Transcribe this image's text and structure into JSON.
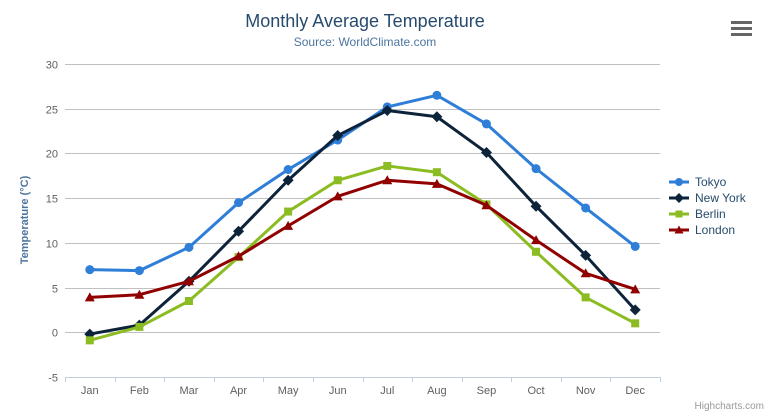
{
  "header": {
    "title": "Monthly Average Temperature",
    "subtitle": "Source: WorldClimate.com"
  },
  "icons": {
    "export_menu": "hamburger-menu-icon"
  },
  "credit": "Highcharts.com",
  "colors": {
    "title": "#274b6d",
    "subtitle": "#4d759e",
    "axis_title": "#4d759e",
    "axis_tick_label": "#606060",
    "gridline": "#c0c0c0",
    "axis_line": "#c0d0e0",
    "legend_text": "#274b6d",
    "credit_text": "#999999",
    "menu_icon": "#666666"
  },
  "chart_data": {
    "type": "line",
    "title": "Monthly Average Temperature",
    "subtitle": "Source: WorldClimate.com",
    "xlabel": "",
    "ylabel": "Temperature (°C)",
    "categories": [
      "Jan",
      "Feb",
      "Mar",
      "Apr",
      "May",
      "Jun",
      "Jul",
      "Aug",
      "Sep",
      "Oct",
      "Nov",
      "Dec"
    ],
    "ylim": [
      -5,
      30
    ],
    "ytick_interval": 5,
    "yticks": [
      30,
      25,
      20,
      15,
      10,
      5,
      0,
      -5
    ],
    "grid": true,
    "legend_position": "right",
    "series": [
      {
        "name": "Tokyo",
        "color": "#2f7ed8",
        "marker": "circle",
        "values": [
          7.0,
          6.9,
          9.5,
          14.5,
          18.2,
          21.5,
          25.2,
          26.5,
          23.3,
          18.3,
          13.9,
          9.6
        ]
      },
      {
        "name": "New York",
        "color": "#0d233a",
        "marker": "diamond",
        "values": [
          -0.2,
          0.8,
          5.7,
          11.3,
          17.0,
          22.0,
          24.8,
          24.1,
          20.1,
          14.1,
          8.6,
          2.5
        ]
      },
      {
        "name": "Berlin",
        "color": "#8bbc21",
        "marker": "square",
        "values": [
          -0.9,
          0.6,
          3.5,
          8.4,
          13.5,
          17.0,
          18.6,
          17.9,
          14.3,
          9.0,
          3.9,
          1.0
        ]
      },
      {
        "name": "London",
        "color": "#910000",
        "marker": "triangle",
        "values": [
          3.9,
          4.2,
          5.7,
          8.5,
          11.9,
          15.2,
          17.0,
          16.6,
          14.2,
          10.3,
          6.6,
          4.8
        ]
      }
    ]
  }
}
